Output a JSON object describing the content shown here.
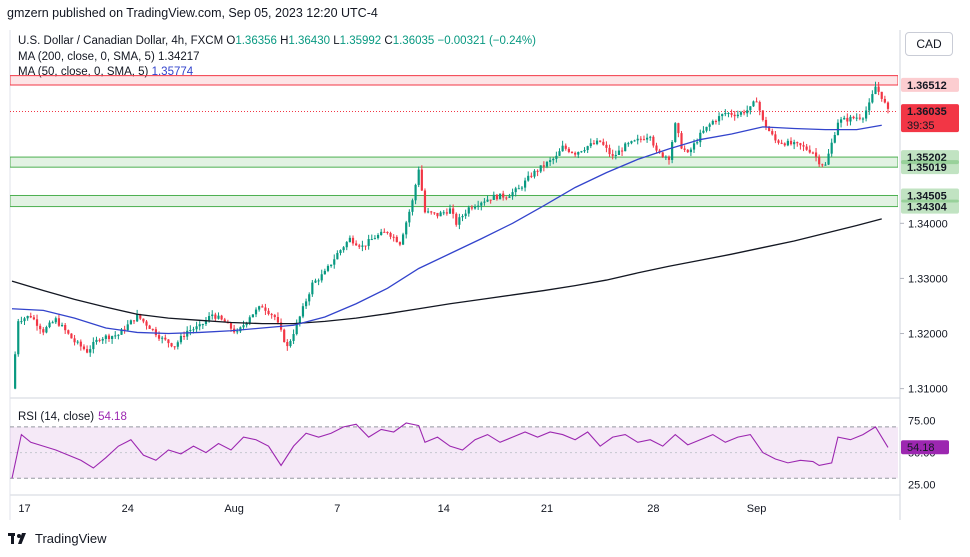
{
  "publisher": "gmzern published on TradingView.com, Sep 05, 2023 12:20 UTC-4",
  "legend": {
    "symbol": "U.S. Dollar / Canadian Dollar, 4h, FXCM",
    "o_label": "O",
    "o_value": "1.36356",
    "h_label": "H",
    "h_value": "1.36430",
    "l_label": "L",
    "l_value": "1.35992",
    "c_label": "C",
    "c_value": "1.36035",
    "change": "−0.00321 (−0.24%)",
    "ma200_label": "MA (200, close, 0, SMA, 5)",
    "ma200_value": "1.34217",
    "ma50_label": "MA (50, close, 0, SMA, 5)",
    "ma50_value": "1.35774"
  },
  "currency_button": "CAD",
  "rsi": {
    "label": "RSI (14, close)",
    "value": "54.18"
  },
  "footer": {
    "logo_icon": "tradingview-logo-icon",
    "brand": "TradingView"
  },
  "colors": {
    "up": "#089981",
    "down": "#f23645",
    "ma50": "#3344cc",
    "ma200": "#131722",
    "rsi": "#9c27b0",
    "zone": "#4caf50",
    "resistance": "#f23645"
  },
  "chart_data": {
    "type": "candlestick",
    "timeframe": "4h",
    "x_ticks": [
      "17",
      "24",
      "Aug",
      "7",
      "14",
      "21",
      "28",
      "Sep"
    ],
    "y_ticks": [
      "1.31000",
      "1.32000",
      "1.33000",
      "1.34000"
    ],
    "ylim": [
      1.3083,
      1.37
    ],
    "price_labels": [
      {
        "value": "1.36512",
        "color": "#f23645"
      },
      {
        "value": "1.36035",
        "color": "#f23645",
        "countdown": "39:35"
      },
      {
        "value": "1.35202",
        "color": "#4caf50"
      },
      {
        "value": "1.35019",
        "color": "#4caf50"
      },
      {
        "value": "1.34505",
        "color": "#4caf50"
      },
      {
        "value": "1.34304",
        "color": "#4caf50"
      }
    ],
    "resistance_zone": [
      1.3651,
      1.3668
    ],
    "support_zones": [
      [
        1.35019,
        1.35202
      ],
      [
        1.34304,
        1.34505
      ]
    ],
    "close_path": [
      [
        0,
        1.31
      ],
      [
        2,
        1.3225
      ],
      [
        6,
        1.3232
      ],
      [
        10,
        1.3205
      ],
      [
        14,
        1.3225
      ],
      [
        20,
        1.3185
      ],
      [
        24,
        1.3168
      ],
      [
        28,
        1.3192
      ],
      [
        34,
        1.3198
      ],
      [
        40,
        1.3232
      ],
      [
        44,
        1.3212
      ],
      [
        48,
        1.319
      ],
      [
        52,
        1.3178
      ],
      [
        56,
        1.3205
      ],
      [
        60,
        1.3212
      ],
      [
        64,
        1.3235
      ],
      [
        68,
        1.322
      ],
      [
        72,
        1.32
      ],
      [
        76,
        1.3232
      ],
      [
        80,
        1.325
      ],
      [
        84,
        1.323
      ],
      [
        88,
        1.3175
      ],
      [
        92,
        1.323
      ],
      [
        96,
        1.329
      ],
      [
        100,
        1.331
      ],
      [
        104,
        1.3345
      ],
      [
        108,
        1.3372
      ],
      [
        112,
        1.3358
      ],
      [
        116,
        1.3375
      ],
      [
        120,
        1.3385
      ],
      [
        124,
        1.3365
      ],
      [
        128,
        1.344
      ],
      [
        130,
        1.35
      ],
      [
        132,
        1.342
      ],
      [
        136,
        1.3415
      ],
      [
        140,
        1.3425
      ],
      [
        142,
        1.34
      ],
      [
        146,
        1.3428
      ],
      [
        150,
        1.344
      ],
      [
        154,
        1.3448
      ],
      [
        158,
        1.345
      ],
      [
        162,
        1.3462
      ],
      [
        166,
        1.3488
      ],
      [
        170,
        1.3505
      ],
      [
        174,
        1.352
      ],
      [
        176,
        1.3538
      ],
      [
        180,
        1.3528
      ],
      [
        184,
        1.354
      ],
      [
        188,
        1.3548
      ],
      [
        192,
        1.352
      ],
      [
        196,
        1.354
      ],
      [
        200,
        1.355
      ],
      [
        204,
        1.3562
      ],
      [
        206,
        1.3528
      ],
      [
        210,
        1.352
      ],
      [
        212,
        1.3578
      ],
      [
        214,
        1.354
      ],
      [
        216,
        1.3525
      ],
      [
        220,
        1.356
      ],
      [
        224,
        1.3585
      ],
      [
        228,
        1.36
      ],
      [
        232,
        1.3598
      ],
      [
        236,
        1.3608
      ],
      [
        238,
        1.3625
      ],
      [
        240,
        1.3585
      ],
      [
        244,
        1.355
      ],
      [
        248,
        1.3545
      ],
      [
        252,
        1.354
      ],
      [
        256,
        1.353
      ],
      [
        258,
        1.3512
      ],
      [
        260,
        1.3505
      ],
      [
        262,
        1.3545
      ],
      [
        264,
        1.3585
      ],
      [
        268,
        1.359
      ],
      [
        272,
        1.3595
      ],
      [
        274,
        1.3615
      ],
      [
        276,
        1.3648
      ],
      [
        278,
        1.363
      ],
      [
        280,
        1.3603
      ]
    ],
    "ma200_path": [
      [
        0,
        1.3295
      ],
      [
        10,
        1.3278
      ],
      [
        20,
        1.3262
      ],
      [
        30,
        1.3248
      ],
      [
        40,
        1.3235
      ],
      [
        50,
        1.3228
      ],
      [
        60,
        1.3224
      ],
      [
        70,
        1.322
      ],
      [
        80,
        1.3218
      ],
      [
        90,
        1.3218
      ],
      [
        100,
        1.3222
      ],
      [
        110,
        1.3228
      ],
      [
        120,
        1.3236
      ],
      [
        130,
        1.3245
      ],
      [
        140,
        1.3254
      ],
      [
        150,
        1.3262
      ],
      [
        160,
        1.327
      ],
      [
        170,
        1.3278
      ],
      [
        180,
        1.3287
      ],
      [
        190,
        1.3297
      ],
      [
        200,
        1.331
      ],
      [
        210,
        1.3322
      ],
      [
        220,
        1.3333
      ],
      [
        230,
        1.3344
      ],
      [
        240,
        1.3356
      ],
      [
        250,
        1.3368
      ],
      [
        260,
        1.3382
      ],
      [
        270,
        1.3396
      ],
      [
        278,
        1.3408
      ]
    ],
    "ma50_path": [
      [
        0,
        1.3245
      ],
      [
        10,
        1.3242
      ],
      [
        20,
        1.3228
      ],
      [
        30,
        1.321
      ],
      [
        40,
        1.3202
      ],
      [
        50,
        1.32
      ],
      [
        60,
        1.3202
      ],
      [
        70,
        1.3205
      ],
      [
        80,
        1.321
      ],
      [
        90,
        1.3215
      ],
      [
        100,
        1.323
      ],
      [
        110,
        1.3254
      ],
      [
        120,
        1.3282
      ],
      [
        130,
        1.3318
      ],
      [
        140,
        1.3345
      ],
      [
        150,
        1.3372
      ],
      [
        160,
        1.34
      ],
      [
        170,
        1.3432
      ],
      [
        180,
        1.3465
      ],
      [
        190,
        1.3492
      ],
      [
        200,
        1.3516
      ],
      [
        210,
        1.3535
      ],
      [
        220,
        1.3552
      ],
      [
        230,
        1.3562
      ],
      [
        240,
        1.3575
      ],
      [
        250,
        1.3572
      ],
      [
        260,
        1.357
      ],
      [
        270,
        1.357
      ],
      [
        278,
        1.3578
      ]
    ],
    "rsi_ticks": [
      "75.00",
      "50.00",
      "25.00"
    ],
    "rsi_ylim": [
      17,
      87
    ],
    "rsi_band": [
      30,
      70
    ],
    "rsi_path": [
      [
        0,
        30
      ],
      [
        3,
        64
      ],
      [
        6,
        58
      ],
      [
        10,
        55
      ],
      [
        14,
        52
      ],
      [
        18,
        48
      ],
      [
        22,
        44
      ],
      [
        26,
        38
      ],
      [
        30,
        46
      ],
      [
        34,
        55
      ],
      [
        38,
        60
      ],
      [
        42,
        48
      ],
      [
        46,
        44
      ],
      [
        50,
        52
      ],
      [
        54,
        49
      ],
      [
        58,
        55
      ],
      [
        62,
        50
      ],
      [
        66,
        57
      ],
      [
        70,
        52
      ],
      [
        74,
        62
      ],
      [
        78,
        60
      ],
      [
        82,
        55
      ],
      [
        86,
        40
      ],
      [
        90,
        55
      ],
      [
        94,
        65
      ],
      [
        98,
        62
      ],
      [
        102,
        65
      ],
      [
        106,
        70
      ],
      [
        110,
        72
      ],
      [
        114,
        62
      ],
      [
        118,
        68
      ],
      [
        122,
        66
      ],
      [
        126,
        73
      ],
      [
        130,
        71
      ],
      [
        132,
        58
      ],
      [
        136,
        62
      ],
      [
        140,
        55
      ],
      [
        144,
        52
      ],
      [
        148,
        60
      ],
      [
        152,
        64
      ],
      [
        156,
        58
      ],
      [
        160,
        62
      ],
      [
        164,
        66
      ],
      [
        168,
        62
      ],
      [
        172,
        66
      ],
      [
        176,
        64
      ],
      [
        180,
        60
      ],
      [
        184,
        66
      ],
      [
        188,
        55
      ],
      [
        192,
        62
      ],
      [
        196,
        64
      ],
      [
        200,
        58
      ],
      [
        204,
        60
      ],
      [
        208,
        55
      ],
      [
        212,
        64
      ],
      [
        216,
        56
      ],
      [
        220,
        60
      ],
      [
        224,
        64
      ],
      [
        228,
        58
      ],
      [
        232,
        62
      ],
      [
        236,
        64
      ],
      [
        240,
        50
      ],
      [
        244,
        45
      ],
      [
        248,
        42
      ],
      [
        252,
        44
      ],
      [
        256,
        43
      ],
      [
        258,
        40
      ],
      [
        262,
        42
      ],
      [
        264,
        62
      ],
      [
        268,
        60
      ],
      [
        272,
        64
      ],
      [
        276,
        70
      ],
      [
        280,
        54
      ]
    ],
    "rsi_last": 54.18
  }
}
